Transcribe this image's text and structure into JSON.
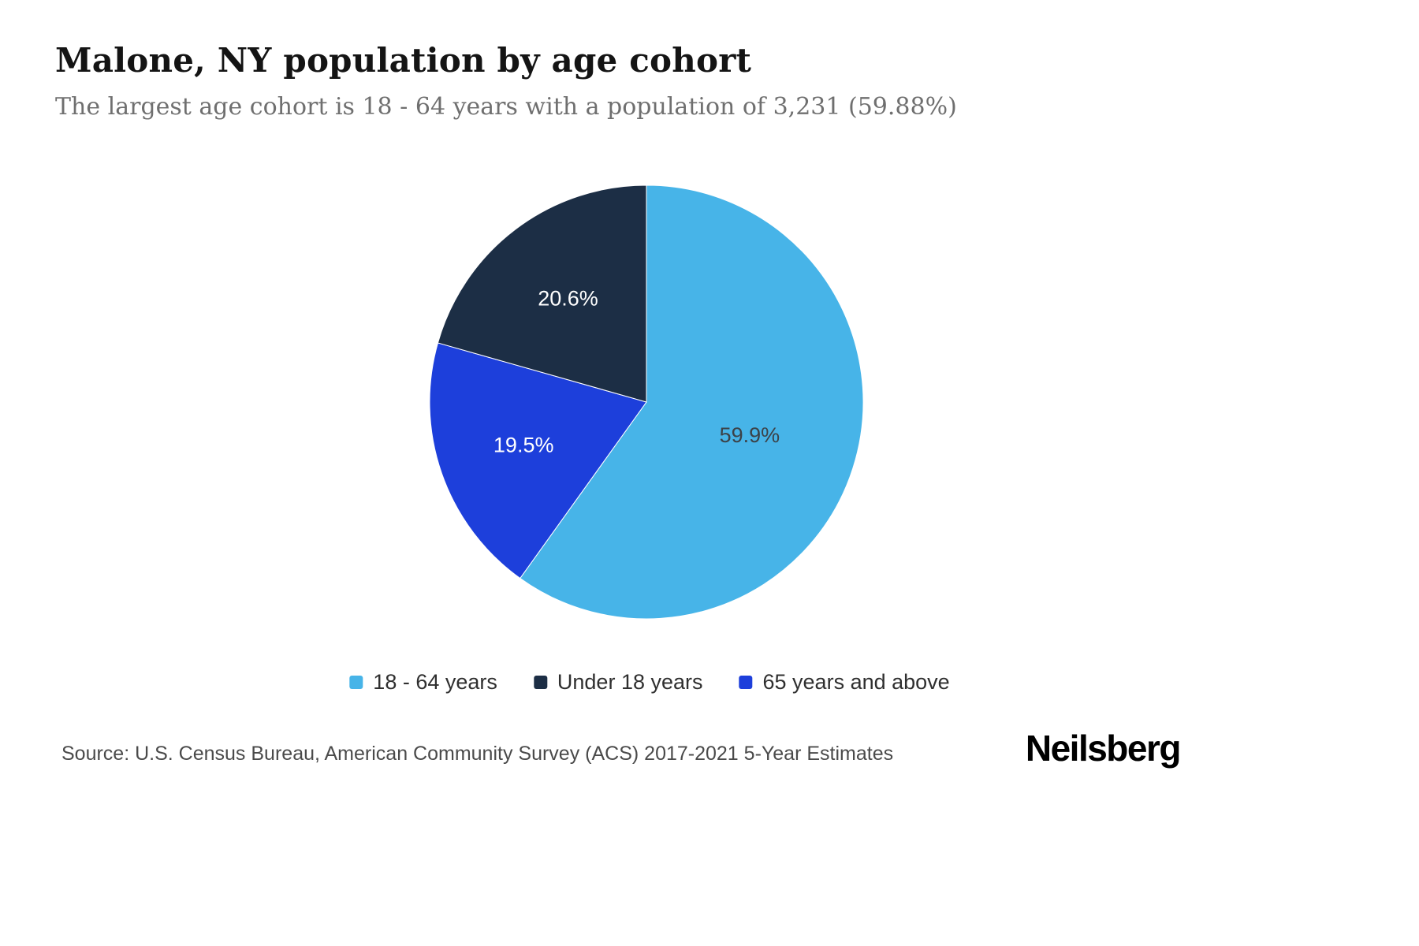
{
  "header": {
    "title": "Malone, NY population by age cohort",
    "subtitle": "The largest age cohort is 18 - 64 years with a population of 3,231 (59.88%)"
  },
  "chart_data": {
    "type": "pie",
    "title": "Malone, NY population by age cohort",
    "subtitle": "The largest age cohort is 18 - 64 years with a population of 3,231 (59.88%)",
    "units": "percent of population",
    "start_angle_deg": 0,
    "direction": "clockwise",
    "slices": [
      {
        "label": "18 - 64 years",
        "value": 59.9,
        "display_label": "59.9%",
        "color": "#47b4e8",
        "text_color": "#3c4248"
      },
      {
        "label": "65 years and above",
        "value": 19.5,
        "display_label": "19.5%",
        "color": "#1d3fdb",
        "text_color": "#ffffff"
      },
      {
        "label": "Under 18 years",
        "value": 20.6,
        "display_label": "20.6%",
        "color": "#1c2e45",
        "text_color": "#ffffff"
      }
    ],
    "legend_position": "bottom",
    "legend": [
      {
        "label": "18 - 64 years",
        "color": "#47b4e8"
      },
      {
        "label": "Under 18 years",
        "color": "#1c2e45"
      },
      {
        "label": "65 years and above",
        "color": "#1d3fdb"
      }
    ]
  },
  "footer": {
    "source": "Source: U.S. Census Bureau, American Community Survey (ACS) 2017-2021 5-Year Estimates",
    "brand": "Neilsberg"
  }
}
